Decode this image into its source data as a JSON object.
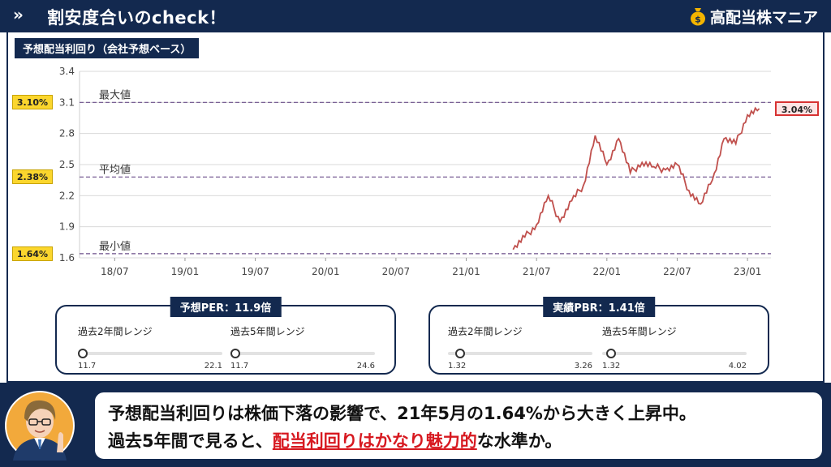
{
  "header": {
    "chevron": "»",
    "title": "割安度合いのcheck！",
    "brand": "高配当株マニア",
    "brand_icon": "money-bag-icon"
  },
  "chart_title": "予想配当利回り（会社予想ベース）",
  "tags": {
    "max": "3.10%",
    "avg": "2.38%",
    "min": "1.64%",
    "current": "3.04%"
  },
  "chart_data": {
    "type": "line",
    "ylim": [
      1.6,
      3.4
    ],
    "y_ticks": [
      "3.4",
      "3.1",
      "2.8",
      "2.5",
      "2.2",
      "1.9",
      "1.6"
    ],
    "x_ticks": [
      "18/07",
      "19/01",
      "19/07",
      "20/01",
      "20/07",
      "21/01",
      "21/07",
      "22/01",
      "22/07",
      "23/01"
    ],
    "reference_lines": [
      {
        "label": "最大値",
        "value": 3.1
      },
      {
        "label": "平均値",
        "value": 2.38
      },
      {
        "label": "最小値",
        "value": 1.64
      }
    ],
    "series": [
      {
        "color": "#c0504d",
        "x": [
          "21/05",
          "21/06",
          "21/07",
          "21/08",
          "21/09",
          "21/10",
          "21/11",
          "21/12",
          "22/01",
          "22/02",
          "22/03",
          "22/04",
          "22/05",
          "22/06",
          "22/07",
          "22/08",
          "22/09",
          "22/10",
          "22/11",
          "22/12",
          "23/01",
          "23/02"
        ],
        "values": [
          1.68,
          1.8,
          1.92,
          2.2,
          1.95,
          2.15,
          2.3,
          2.78,
          2.5,
          2.75,
          2.42,
          2.52,
          2.48,
          2.45,
          2.5,
          2.25,
          2.12,
          2.35,
          2.75,
          2.7,
          2.98,
          3.04
        ]
      }
    ]
  },
  "per_box": {
    "title": "予想PER：11.9倍",
    "ranges": [
      {
        "label": "過去2年間レンジ",
        "min": "11.7",
        "max": "22.1",
        "position": 0.0
      },
      {
        "label": "過去5年間レンジ",
        "min": "11.7",
        "max": "24.6",
        "position": 0.0
      }
    ]
  },
  "pbr_box": {
    "title": "実績PBR：1.41倍",
    "ranges": [
      {
        "label": "過去2年間レンジ",
        "min": "1.32",
        "max": "3.26",
        "position": 0.05
      },
      {
        "label": "過去5年間レンジ",
        "min": "1.32",
        "max": "4.02",
        "position": 0.03
      }
    ]
  },
  "comment": {
    "line1": "予想配当利回りは株価下落の影響で、21年5月の1.64%から大きく上昇中。",
    "line2_pre": "過去5年間で見ると、",
    "line2_highlight": "配当利回りはかなり魅力的",
    "line2_post": "な水準か。"
  },
  "colors": {
    "navy": "#13294f",
    "yellow": "#fbd62d",
    "line": "#c0504d",
    "highlight": "#d71920"
  }
}
